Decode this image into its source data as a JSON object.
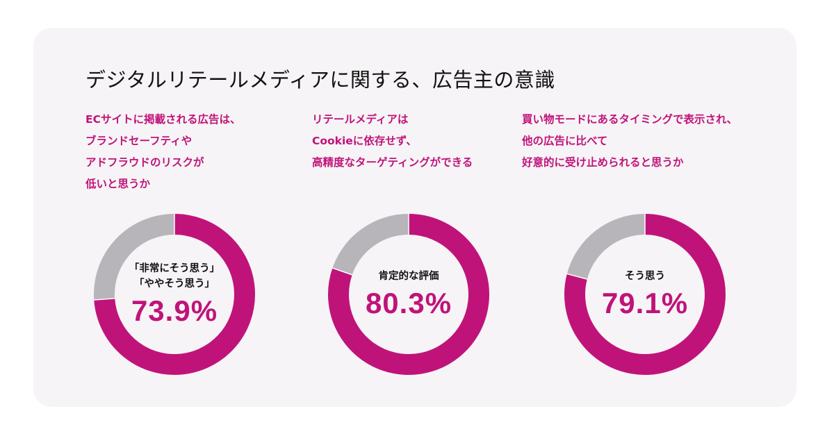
{
  "title": "デジタルリテールメディアに関する、広告主の意識",
  "colors": {
    "accent": "#c0137a",
    "remainder": "#b8b5ba",
    "panel": "#f6f4f6"
  },
  "chart_data": [
    {
      "type": "pie",
      "question": [
        "ECサイトに掲載される広告は、",
        "ブランドセーフティや",
        "アドフラウドのリスクが",
        "低いと思うか"
      ],
      "center_label": [
        "「非常にそう思う」",
        "「ややそう思う」"
      ],
      "value_label": "73.9%",
      "values": [
        73.9,
        26.1
      ]
    },
    {
      "type": "pie",
      "question": [
        "リテールメディアは",
        "Cookieに依存せず、",
        "高精度なターゲティングができる"
      ],
      "center_label": [
        "肯定的な評価"
      ],
      "value_label": "80.3%",
      "values": [
        80.3,
        19.7
      ]
    },
    {
      "type": "pie",
      "question": [
        "買い物モードにあるタイミングで表示され、",
        "他の広告に比べて",
        "好意的に受け止められると思うか"
      ],
      "center_label": [
        "そう思う"
      ],
      "value_label": "79.1%",
      "values": [
        79.1,
        20.9
      ]
    }
  ]
}
